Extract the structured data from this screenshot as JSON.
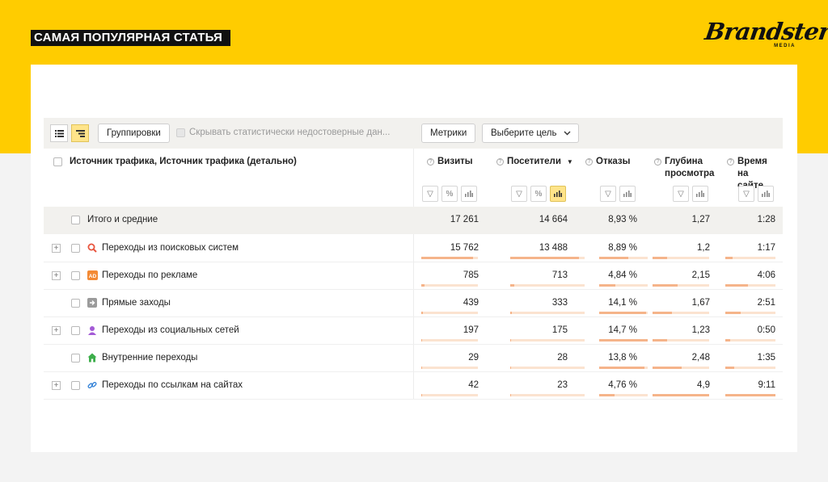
{
  "banner": {
    "title": "САМАЯ ПОПУЛЯРНАЯ СТАТЬЯ"
  },
  "logo": {
    "word": "Brandster",
    "sub": "MEDIA"
  },
  "toolbar": {
    "groupings_label": "Группировки",
    "hide_stat_label": "Скрывать статистически недостоверные дан...",
    "metrics_label": "Метрики",
    "goal_label": "Выберите цель"
  },
  "table": {
    "dimension_header": "Источник трафика, Источник трафика (детально)",
    "columns": [
      {
        "key": "visits",
        "label": "Визиты"
      },
      {
        "key": "visitors",
        "label": "Посетители",
        "sort": "▼"
      },
      {
        "key": "bounces",
        "label": "Отказы"
      },
      {
        "key": "depth",
        "label": "Глубина просмотра"
      },
      {
        "key": "time",
        "label": "Время на сайте"
      }
    ],
    "total": {
      "label": "Итого и средние",
      "visits": "17 261",
      "visitors": "14 664",
      "bounces": "8,93 %",
      "depth": "1,27",
      "time": "1:28"
    },
    "rows": [
      {
        "label": "Переходы из поисковых систем",
        "icon": "search-icon",
        "expandable": true,
        "visits": "15 762",
        "visitors": "13 488",
        "bounces": "8,89 %",
        "depth": "1,2",
        "time": "1:17",
        "bars": [
          0.91,
          0.92,
          0.6,
          0.25,
          0.14
        ]
      },
      {
        "label": "Переходы по рекламе",
        "icon": "ad-icon",
        "expandable": true,
        "visits": "785",
        "visitors": "713",
        "bounces": "4,84 %",
        "depth": "2,15",
        "time": "4:06",
        "bars": [
          0.05,
          0.05,
          0.33,
          0.44,
          0.45
        ]
      },
      {
        "label": "Прямые заходы",
        "icon": "direct-icon",
        "expandable": false,
        "visits": "439",
        "visitors": "333",
        "bounces": "14,1 %",
        "depth": "1,67",
        "time": "2:51",
        "bars": [
          0.03,
          0.02,
          0.96,
          0.34,
          0.31
        ]
      },
      {
        "label": "Переходы из социальных сетей",
        "icon": "social-icon",
        "expandable": true,
        "visits": "197",
        "visitors": "175",
        "bounces": "14,7 %",
        "depth": "1,23",
        "time": "0:50",
        "bars": [
          0.01,
          0.01,
          1.0,
          0.25,
          0.09
        ]
      },
      {
        "label": "Внутренние переходы",
        "icon": "home-icon",
        "expandable": false,
        "visits": "29",
        "visitors": "28",
        "bounces": "13,8 %",
        "depth": "2,48",
        "time": "1:35",
        "bars": [
          0.002,
          0.002,
          0.94,
          0.51,
          0.17
        ]
      },
      {
        "label": "Переходы по ссылкам на сайтах",
        "icon": "link-icon",
        "expandable": true,
        "visits": "42",
        "visitors": "23",
        "bounces": "4,76 %",
        "depth": "4,9",
        "time": "9:11",
        "bars": [
          0.003,
          0.002,
          0.32,
          1.0,
          1.0
        ]
      }
    ]
  },
  "colors": {
    "brand": "#ffcc00",
    "bar_fill": "#f5b48a",
    "bar_track": "#fbe3d0"
  }
}
